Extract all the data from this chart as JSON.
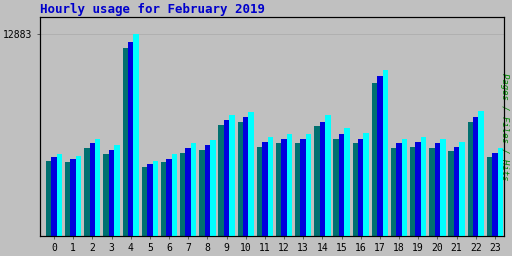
{
  "title": "Hourly usage for February 2019",
  "title_color": "#0000cc",
  "title_fontsize": 9,
  "ylabel_right": "Pages / Files / Hits",
  "ylabel_right_color": "#008800",
  "background_color": "#c0c0c0",
  "plot_bg_color": "#c0c0c0",
  "categories": [
    0,
    1,
    2,
    3,
    4,
    5,
    6,
    7,
    8,
    9,
    10,
    11,
    12,
    13,
    14,
    15,
    16,
    17,
    18,
    19,
    20,
    21,
    22,
    23
  ],
  "pages": [
    5200,
    5100,
    6200,
    5800,
    12883,
    4800,
    5200,
    5900,
    6100,
    7700,
    7900,
    6300,
    6500,
    6500,
    7700,
    6900,
    6600,
    10600,
    6200,
    6300,
    6200,
    6000,
    8000,
    5600
  ],
  "files": [
    5000,
    4900,
    5900,
    5500,
    12400,
    4600,
    4900,
    5600,
    5800,
    7400,
    7600,
    6000,
    6200,
    6200,
    7300,
    6500,
    6200,
    10200,
    5900,
    6000,
    5900,
    5700,
    7600,
    5300
  ],
  "hits": [
    4800,
    4700,
    5600,
    5200,
    12000,
    4400,
    4700,
    5300,
    5500,
    7100,
    7300,
    5700,
    5900,
    5900,
    7000,
    6200,
    5900,
    9800,
    5600,
    5700,
    5600,
    5400,
    7300,
    5000
  ],
  "pages_color": "#00ffff",
  "files_color": "#0000dd",
  "hits_color": "#007070",
  "ylim_max": 14000,
  "ytick_val": 12883,
  "tick_fontsize": 7,
  "font_family": "monospace"
}
